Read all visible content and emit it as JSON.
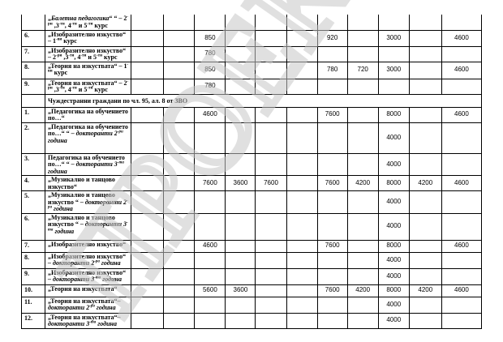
{
  "watermark": "ПРОЕКТ",
  "section_header": "Чуждестранни граждани по чл. 95, ал. 8 от ЗВО",
  "rows_top": [
    {
      "num": "",
      "name": [
        {
          "t": "„"
        },
        {
          "t": "Балетна педагогика",
          "i": true
        },
        {
          "t": "“ “ – 2"
        },
        {
          "t": "-ри",
          "s": true
        },
        {
          "t": " ,3"
        },
        {
          "t": "-ти",
          "s": true
        },
        {
          "t": ", 4"
        },
        {
          "t": "-ти",
          "s": true
        },
        {
          "t": " и 5"
        },
        {
          "t": "-ти",
          "s": true
        },
        {
          "t": " курс"
        }
      ],
      "values": [
        "",
        "",
        "",
        "",
        "",
        "",
        "",
        "",
        "",
        "",
        ""
      ]
    },
    {
      "num": "6.",
      "name": [
        {
          "t": "„Изобразително изкуство“ – 1"
        },
        {
          "t": "-ви",
          "s": true
        },
        {
          "t": " курс"
        }
      ],
      "values": [
        "",
        "",
        "850",
        "",
        "",
        "",
        "920",
        "",
        "3000",
        "",
        "4600"
      ]
    },
    {
      "num": "7.",
      "name": [
        {
          "t": "„Изобразително изкуство“ – 2"
        },
        {
          "t": "-ри",
          "s": true
        },
        {
          "t": " ,3"
        },
        {
          "t": "-ти",
          "s": true
        },
        {
          "t": ", 4"
        },
        {
          "t": "-ти",
          "s": true
        },
        {
          "t": " и 5"
        },
        {
          "t": "-ти",
          "s": true
        },
        {
          "t": " курс"
        }
      ],
      "values": [
        "",
        "",
        "780",
        "",
        "",
        "",
        "",
        "",
        "",
        "",
        ""
      ]
    },
    {
      "num": "8.",
      "name": [
        {
          "t": "„Теория на изкуствата“ – 1"
        },
        {
          "t": "-ви",
          "s": true
        },
        {
          "t": " курс"
        }
      ],
      "values": [
        "",
        "",
        "850",
        "",
        "",
        "",
        "780",
        "720",
        "3000",
        "",
        "4600"
      ]
    },
    {
      "num": "9.",
      "name": [
        {
          "t": "„Теория на изкуствата“ – 2"
        },
        {
          "t": "-ри",
          "s": true
        },
        {
          "t": " ,3"
        },
        {
          "t": "-ти",
          "s": true
        },
        {
          "t": ", 4"
        },
        {
          "t": "-ти",
          "s": true
        },
        {
          "t": " и 5"
        },
        {
          "t": "-ти",
          "s": true
        },
        {
          "t": " курс"
        }
      ],
      "values": [
        "",
        "",
        "780",
        "",
        "",
        "",
        "",
        "",
        "",
        "",
        ""
      ]
    }
  ],
  "rows_foreign": [
    {
      "num": "1.",
      "name": [
        {
          "t": "„Педагогика на обучението по…“"
        }
      ],
      "values": [
        "",
        "",
        "4600",
        "",
        "",
        "",
        "7600",
        "",
        "8000",
        "",
        "4600"
      ]
    },
    {
      "num": "2.",
      "name": [
        {
          "t": "„Педагогика на обучението по…“ “ – "
        },
        {
          "t": "докторанти 2",
          "i": true
        },
        {
          "t": "-ри",
          "s": true,
          "i": true
        },
        {
          "t": " година",
          "i": true
        }
      ],
      "values": [
        "",
        "",
        "",
        "",
        "",
        "",
        "",
        "",
        "4000",
        "",
        ""
      ]
    },
    {
      "num": "3.",
      "name": [
        {
          "t": "Педагогика на обучението по…“ “ – "
        },
        {
          "t": "докторанти  3",
          "i": true
        },
        {
          "t": "-та",
          "s": true,
          "i": true
        },
        {
          "t": " година",
          "i": true
        }
      ],
      "values": [
        "",
        "",
        "",
        "",
        "",
        "",
        "",
        "",
        "4000",
        "",
        ""
      ]
    },
    {
      "num": "4.",
      "name": [
        {
          "t": "„Музикално и танцово изкуство“"
        }
      ],
      "values": [
        "",
        "",
        "7600",
        "3600",
        "7600",
        "",
        "7600",
        "4200",
        "8000",
        "4200",
        "4600"
      ]
    },
    {
      "num": "5.",
      "name": [
        {
          "t": "„Музикално и танцово изкуство “ – "
        },
        {
          "t": "докторанти 2",
          "i": true
        },
        {
          "t": "-ра",
          "s": true,
          "i": true
        },
        {
          "t": " година",
          "i": true
        }
      ],
      "values": [
        "",
        "",
        "",
        "",
        "",
        "",
        "",
        "",
        "4000",
        "",
        ""
      ]
    },
    {
      "num": "6.",
      "name": [
        {
          "t": "„Музикално и танцово изкуство “ – "
        },
        {
          "t": "докторанти 3",
          "i": true
        },
        {
          "t": "-та",
          "s": true,
          "i": true
        },
        {
          "t": " година",
          "i": true
        }
      ],
      "values": [
        "",
        "",
        "",
        "",
        "",
        "",
        "",
        "",
        "4000",
        "",
        ""
      ]
    },
    {
      "num": "7.",
      "name": [
        {
          "t": "„Изобразително изкуство“"
        }
      ],
      "values": [
        "",
        "",
        "4600",
        "",
        "",
        "",
        "7600",
        "",
        "8000",
        "",
        "4600"
      ]
    },
    {
      "num": "8.",
      "name": [
        {
          "t": "„Изобразително изкуство“ "
        },
        {
          "t": "– докторанти 2",
          "i": true
        },
        {
          "t": "-ра",
          "s": true,
          "i": true
        },
        {
          "t": " година",
          "i": true
        }
      ],
      "values": [
        "",
        "",
        "",
        "",
        "",
        "",
        "",
        "",
        "4000",
        "",
        ""
      ]
    },
    {
      "num": "9.",
      "name": [
        {
          "t": "„Изобразително изкуство“ "
        },
        {
          "t": "– докторанти 3",
          "i": true
        },
        {
          "t": "-та",
          "s": true,
          "i": true
        },
        {
          "t": " година",
          "i": true
        }
      ],
      "values": [
        "",
        "",
        "",
        "",
        "",
        "",
        "",
        "",
        "4000",
        "",
        ""
      ]
    },
    {
      "num": "10.",
      "name": [
        {
          "t": "„Теория на изкуствата“"
        }
      ],
      "values": [
        "",
        "",
        "5600",
        "3600",
        "",
        "",
        "7600",
        "4200",
        "8000",
        "4200",
        "4600"
      ]
    },
    {
      "num": "11.",
      "name": [
        {
          "t": "„Теория на изкуствата“– "
        },
        {
          "t": "докторанти 2",
          "i": true
        },
        {
          "t": "-ра",
          "s": true,
          "i": true
        },
        {
          "t": " година",
          "i": true
        }
      ],
      "values": [
        "",
        "",
        "",
        "",
        "",
        "",
        "",
        "",
        "4000",
        "",
        ""
      ]
    },
    {
      "num": "12.",
      "name": [
        {
          "t": "„Теория на изкуствата“– "
        },
        {
          "t": "докторанти  3",
          "i": true
        },
        {
          "t": "-та",
          "s": true,
          "i": true
        },
        {
          "t": " година",
          "i": true
        }
      ],
      "values": [
        "",
        "",
        "",
        "",
        "",
        "",
        "",
        "",
        "4000",
        "",
        ""
      ]
    }
  ]
}
